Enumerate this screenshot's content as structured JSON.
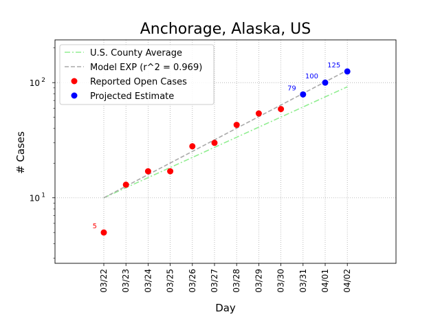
{
  "chart_data": {
    "type": "scatter",
    "title": "Anchorage, Alaska, US",
    "xlabel": "Day",
    "ylabel": "# Cases",
    "y_scale": "log",
    "ylim": [
      2.7,
      235
    ],
    "grid": true,
    "legend_position": "top-left",
    "categories": [
      "03/22",
      "03/23",
      "03/24",
      "03/25",
      "03/26",
      "03/27",
      "03/28",
      "03/29",
      "03/30",
      "03/31",
      "04/01",
      "04/02"
    ],
    "y_ticks": [
      {
        "value": 10,
        "label": "10",
        "exp": "1"
      },
      {
        "value": 100,
        "label": "10",
        "exp": "2"
      }
    ],
    "series": [
      {
        "name": "U.S. County Average",
        "kind": "line",
        "style": "dashdot",
        "color": "#90ee90",
        "x": [
          "03/22",
          "04/02"
        ],
        "y": [
          10,
          92
        ]
      },
      {
        "name": "Model EXP (r^2 = 0.969)",
        "kind": "line",
        "style": "dashed",
        "color": "#a9a9a9",
        "x": [
          "03/22",
          "04/02"
        ],
        "y": [
          10,
          128
        ]
      },
      {
        "name": "Reported Open Cases",
        "kind": "scatter",
        "color": "#ff0000",
        "x": [
          "03/22",
          "03/23",
          "03/24",
          "03/25",
          "03/26",
          "03/27",
          "03/28",
          "03/29",
          "03/30"
        ],
        "y": [
          5,
          13,
          17,
          17,
          28,
          30,
          43,
          54,
          59
        ]
      },
      {
        "name": "Projected Estimate",
        "kind": "scatter",
        "color": "#0000ff",
        "x": [
          "03/31",
          "04/01",
          "04/02"
        ],
        "y": [
          79,
          100,
          125
        ]
      }
    ],
    "annotations": [
      {
        "x": "03/22",
        "y": 5,
        "text": "5",
        "color": "#ff0000"
      },
      {
        "x": "03/31",
        "y": 79,
        "text": "79",
        "color": "#0000ff"
      },
      {
        "x": "04/01",
        "y": 100,
        "text": "100",
        "color": "#0000ff"
      },
      {
        "x": "04/02",
        "y": 125,
        "text": "125",
        "color": "#0000ff"
      }
    ]
  }
}
